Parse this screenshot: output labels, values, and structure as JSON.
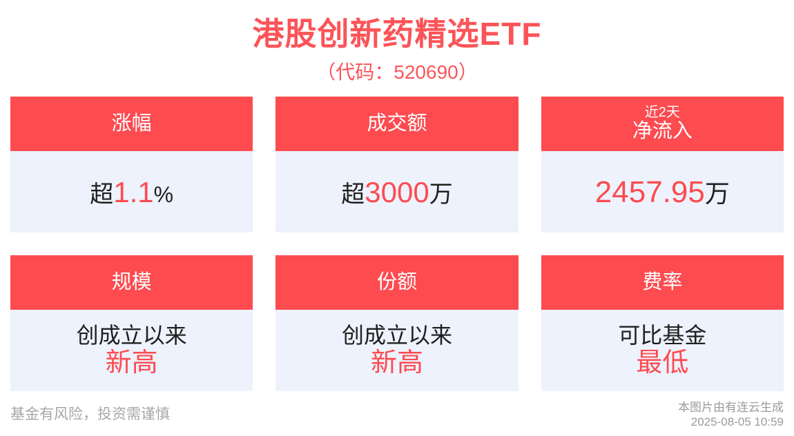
{
  "header": {
    "title": "港股创新药精选ETF",
    "subtitle": "（代码：520690）"
  },
  "cards": [
    {
      "title": "涨幅",
      "value_prefix": "超",
      "value": "1.1",
      "value_suffix": "%"
    },
    {
      "title": "成交额",
      "value_prefix": "超",
      "value": "3000",
      "value_suffix": "万"
    },
    {
      "title_small": "近2天",
      "title": "净流入",
      "value": "2457.95",
      "value_suffix": "万"
    },
    {
      "title": "规模",
      "line1": "创成立以来",
      "line2": "新高"
    },
    {
      "title": "份额",
      "line1": "创成立以来",
      "line2": "新高"
    },
    {
      "title": "费率",
      "line1": "可比基金",
      "line2": "最低"
    }
  ],
  "footer": {
    "disclaimer": "基金有风险，投资需谨慎",
    "source_line1": "本图片由有连云生成",
    "source_line2": "2025-08-05 10:59"
  },
  "colors": {
    "accent_red": "#fd4b50",
    "title_red": "#fb5458",
    "card_body_bg": "#edf2fc",
    "text_dark": "#1f1f1f",
    "footer_gray": "#a7a7a7"
  }
}
